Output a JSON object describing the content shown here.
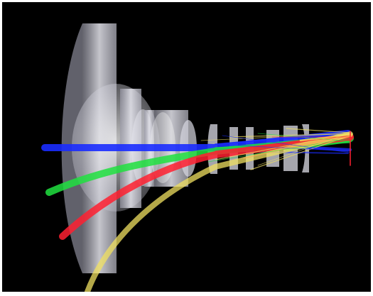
{
  "scene": {
    "background": "#000000",
    "frame_color": "#ffffff",
    "lens_color": "#dcdce6",
    "ray_bundles": [
      {
        "name": "blue",
        "color": "#1a2cff",
        "field": "on-axis"
      },
      {
        "name": "green",
        "color": "#20e040",
        "field": "field-1"
      },
      {
        "name": "red",
        "color": "#ff2030",
        "field": "field-2"
      },
      {
        "name": "yellow",
        "color": "#f0e060",
        "field": "field-3"
      }
    ],
    "lens_elements_count": 12
  }
}
